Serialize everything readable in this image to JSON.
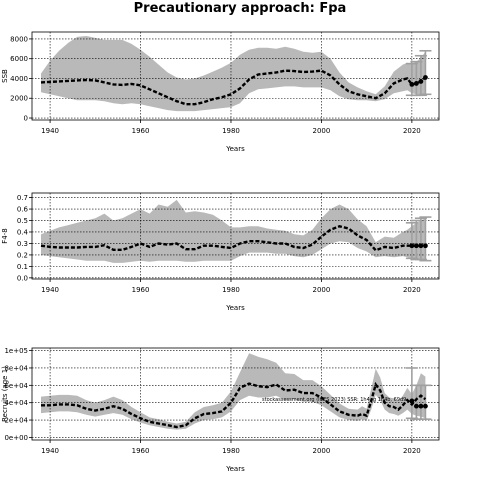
{
  "title": "Precautionary approach: Fpa",
  "annotation": "stockassessment.org (ICES 2023) SSR: 1h4, g 1h4b, 69d9",
  "chart_data": [
    {
      "type": "area",
      "xlabel": "Years",
      "ylabel": "SSB",
      "xlim": [
        1936,
        2026
      ],
      "ylim": [
        -200,
        8700
      ],
      "grid": true,
      "xticks": [
        1940,
        1960,
        1980,
        2000,
        2020
      ],
      "yticks": [
        0,
        2000,
        4000,
        6000,
        8000
      ],
      "ytick_labels": [
        "0",
        "2000",
        "4000",
        "6000",
        "8000"
      ],
      "x": [
        1938,
        1940,
        1942,
        1944,
        1946,
        1948,
        1950,
        1952,
        1954,
        1956,
        1958,
        1960,
        1962,
        1964,
        1966,
        1968,
        1970,
        1972,
        1974,
        1976,
        1978,
        1980,
        1982,
        1984,
        1986,
        1988,
        1990,
        1992,
        1994,
        1996,
        1998,
        2000,
        2002,
        2004,
        2006,
        2008,
        2010,
        2012,
        2014,
        2016,
        2018,
        2019,
        2020,
        2021,
        2022,
        2023
      ],
      "estimate": [
        3600,
        3650,
        3700,
        3750,
        3800,
        3850,
        3800,
        3600,
        3400,
        3350,
        3450,
        3300,
        2900,
        2500,
        2100,
        1700,
        1400,
        1400,
        1600,
        1900,
        2100,
        2400,
        3000,
        3900,
        4400,
        4500,
        4600,
        4800,
        4750,
        4650,
        4700,
        4800,
        4300,
        3400,
        2700,
        2400,
        2200,
        2000,
        2500,
        3500,
        3900,
        4000,
        3400,
        3500,
        3700,
        4100
      ],
      "lower": [
        2600,
        2400,
        2200,
        2000,
        1800,
        1800,
        1800,
        1700,
        1500,
        1400,
        1500,
        1400,
        1200,
        1000,
        800,
        700,
        700,
        700,
        800,
        900,
        1000,
        1100,
        1500,
        2500,
        2900,
        3000,
        3100,
        3200,
        3200,
        3100,
        3100,
        3100,
        2800,
        2200,
        1900,
        1800,
        1800,
        1700,
        1900,
        2500,
        2700,
        2800,
        2500,
        2400,
        2300,
        2400
      ],
      "upper": [
        4500,
        5800,
        6800,
        7600,
        8200,
        8300,
        8100,
        7900,
        7900,
        7900,
        7500,
        6900,
        6200,
        5400,
        4600,
        4100,
        3900,
        4000,
        4300,
        4700,
        5100,
        5600,
        6400,
        6900,
        7100,
        7100,
        7000,
        7200,
        7000,
        6700,
        6600,
        6700,
        6000,
        4600,
        3600,
        3100,
        2700,
        2400,
        3200,
        4700,
        5400,
        5600,
        5500,
        5700,
        6100,
        6700
      ],
      "highlight_points": {
        "x": [
          2020,
          2021,
          2022,
          2023
        ],
        "y": [
          3400,
          3500,
          3700,
          4100
        ]
      },
      "error_bars": [
        {
          "x": 2020,
          "low": 2300,
          "high": 5500
        },
        {
          "x": 2021,
          "low": 2300,
          "high": 5700
        },
        {
          "x": 2022,
          "low": 2300,
          "high": 6300
        },
        {
          "x": 2023,
          "low": 2400,
          "high": 6800
        }
      ]
    },
    {
      "type": "area",
      "xlabel": "Years",
      "ylabel": "F4-8",
      "xlim": [
        1936,
        2026
      ],
      "ylim": [
        -0.01,
        0.74
      ],
      "grid": true,
      "xticks": [
        1940,
        1960,
        1980,
        2000,
        2020
      ],
      "yticks": [
        0.0,
        0.1,
        0.2,
        0.3,
        0.4,
        0.5,
        0.6,
        0.7
      ],
      "ytick_labels": [
        "0.0",
        "0.1",
        "0.2",
        "0.3",
        "0.4",
        "0.5",
        "0.6",
        "0.7"
      ],
      "x": [
        1938,
        1940,
        1942,
        1944,
        1946,
        1948,
        1950,
        1952,
        1954,
        1956,
        1958,
        1960,
        1962,
        1964,
        1966,
        1968,
        1970,
        1972,
        1974,
        1976,
        1978,
        1980,
        1982,
        1984,
        1986,
        1988,
        1990,
        1992,
        1994,
        1996,
        1998,
        2000,
        2002,
        2004,
        2006,
        2008,
        2010,
        2012,
        2014,
        2016,
        2018,
        2019,
        2020,
        2021,
        2022,
        2023
      ],
      "estimate": [
        0.28,
        0.27,
        0.265,
        0.265,
        0.265,
        0.27,
        0.27,
        0.285,
        0.245,
        0.245,
        0.27,
        0.3,
        0.27,
        0.3,
        0.29,
        0.3,
        0.25,
        0.25,
        0.28,
        0.28,
        0.27,
        0.26,
        0.3,
        0.32,
        0.32,
        0.31,
        0.3,
        0.3,
        0.27,
        0.26,
        0.29,
        0.36,
        0.42,
        0.45,
        0.43,
        0.37,
        0.33,
        0.24,
        0.27,
        0.26,
        0.28,
        0.28,
        0.28,
        0.28,
        0.28,
        0.28
      ],
      "lower": [
        0.2,
        0.19,
        0.18,
        0.17,
        0.16,
        0.15,
        0.15,
        0.15,
        0.13,
        0.13,
        0.14,
        0.15,
        0.14,
        0.15,
        0.15,
        0.15,
        0.14,
        0.14,
        0.15,
        0.15,
        0.15,
        0.15,
        0.19,
        0.22,
        0.22,
        0.22,
        0.21,
        0.21,
        0.19,
        0.18,
        0.2,
        0.25,
        0.3,
        0.32,
        0.31,
        0.26,
        0.23,
        0.18,
        0.19,
        0.18,
        0.19,
        0.18,
        0.17,
        0.16,
        0.16,
        0.16
      ],
      "upper": [
        0.38,
        0.41,
        0.44,
        0.46,
        0.48,
        0.5,
        0.52,
        0.56,
        0.5,
        0.52,
        0.56,
        0.6,
        0.56,
        0.64,
        0.62,
        0.68,
        0.57,
        0.58,
        0.57,
        0.55,
        0.5,
        0.44,
        0.44,
        0.45,
        0.45,
        0.43,
        0.42,
        0.41,
        0.38,
        0.37,
        0.42,
        0.52,
        0.6,
        0.64,
        0.6,
        0.51,
        0.45,
        0.31,
        0.36,
        0.35,
        0.4,
        0.42,
        0.45,
        0.48,
        0.5,
        0.52
      ],
      "highlight_points": {
        "x": [
          2020,
          2021,
          2022,
          2023
        ],
        "y": [
          0.28,
          0.28,
          0.28,
          0.28
        ]
      },
      "error_bars": [
        {
          "x": 2020,
          "low": 0.17,
          "high": 0.48
        },
        {
          "x": 2021,
          "low": 0.16,
          "high": 0.5
        },
        {
          "x": 2022,
          "low": 0.16,
          "high": 0.52
        },
        {
          "x": 2023,
          "low": 0.15,
          "high": 0.53
        }
      ]
    },
    {
      "type": "area",
      "xlabel": "Years",
      "ylabel": "Recruits (age 1)",
      "xlim": [
        1936,
        2026
      ],
      "ylim": [
        -0.03,
        1.03
      ],
      "grid": true,
      "xticks": [
        1940,
        1960,
        1980,
        2000,
        2020
      ],
      "yticks": [
        0,
        0.2,
        0.4,
        0.6,
        0.8,
        1.0
      ],
      "ytick_labels": [
        "0e+00",
        "2e+04",
        "4e+04",
        "6e+04",
        "8e+04",
        "1e+05"
      ],
      "x": [
        1938,
        1940,
        1942,
        1944,
        1946,
        1948,
        1950,
        1952,
        1954,
        1956,
        1958,
        1960,
        1962,
        1964,
        1966,
        1968,
        1970,
        1972,
        1974,
        1976,
        1978,
        1980,
        1982,
        1984,
        1986,
        1988,
        1990,
        1992,
        1994,
        1996,
        1998,
        2000,
        2002,
        2004,
        2006,
        2008,
        2009,
        2010,
        2011,
        2012,
        2013,
        2014,
        2015,
        2016,
        2017,
        2018,
        2019,
        2020,
        2021,
        2022,
        2023
      ],
      "estimate": [
        0.37,
        0.37,
        0.38,
        0.38,
        0.37,
        0.33,
        0.31,
        0.33,
        0.36,
        0.33,
        0.27,
        0.22,
        0.18,
        0.16,
        0.14,
        0.12,
        0.14,
        0.22,
        0.27,
        0.28,
        0.3,
        0.4,
        0.57,
        0.62,
        0.59,
        0.58,
        0.61,
        0.54,
        0.55,
        0.51,
        0.51,
        0.46,
        0.38,
        0.3,
        0.26,
        0.25,
        0.27,
        0.25,
        0.42,
        0.61,
        0.54,
        0.4,
        0.36,
        0.35,
        0.32,
        0.37,
        0.43,
        0.38,
        0.44,
        0.48,
        0.44
      ],
      "lower": [
        0.28,
        0.29,
        0.3,
        0.3,
        0.29,
        0.26,
        0.24,
        0.26,
        0.28,
        0.26,
        0.21,
        0.17,
        0.14,
        0.12,
        0.1,
        0.09,
        0.1,
        0.16,
        0.2,
        0.21,
        0.23,
        0.3,
        0.43,
        0.48,
        0.46,
        0.46,
        0.48,
        0.43,
        0.44,
        0.41,
        0.41,
        0.37,
        0.3,
        0.23,
        0.2,
        0.19,
        0.21,
        0.19,
        0.32,
        0.49,
        0.43,
        0.32,
        0.28,
        0.27,
        0.25,
        0.28,
        0.32,
        0.27,
        0.25,
        0.24,
        0.22
      ],
      "upper": [
        0.47,
        0.48,
        0.49,
        0.49,
        0.48,
        0.43,
        0.4,
        0.43,
        0.47,
        0.43,
        0.35,
        0.29,
        0.23,
        0.21,
        0.18,
        0.16,
        0.18,
        0.29,
        0.35,
        0.37,
        0.4,
        0.53,
        0.75,
        0.97,
        0.93,
        0.9,
        0.86,
        0.74,
        0.73,
        0.66,
        0.66,
        0.59,
        0.49,
        0.39,
        0.33,
        0.32,
        0.36,
        0.33,
        0.56,
        0.79,
        0.69,
        0.51,
        0.46,
        0.45,
        0.42,
        0.48,
        0.57,
        0.5,
        0.6,
        0.74,
        0.7
      ],
      "highlight_points": {
        "x": [
          2020,
          2021,
          2022,
          2023
        ],
        "y": [
          0.42,
          0.36,
          0.36,
          0.36
        ]
      },
      "error_bars": [
        {
          "x": 2020,
          "low": 0.22,
          "high": 0.8
        },
        {
          "x": 2021,
          "low": 0.21,
          "high": 0.6
        },
        {
          "x": 2022,
          "low": 0.21,
          "high": 0.6
        },
        {
          "x": 2023,
          "low": 0.21,
          "high": 0.6
        }
      ]
    }
  ]
}
